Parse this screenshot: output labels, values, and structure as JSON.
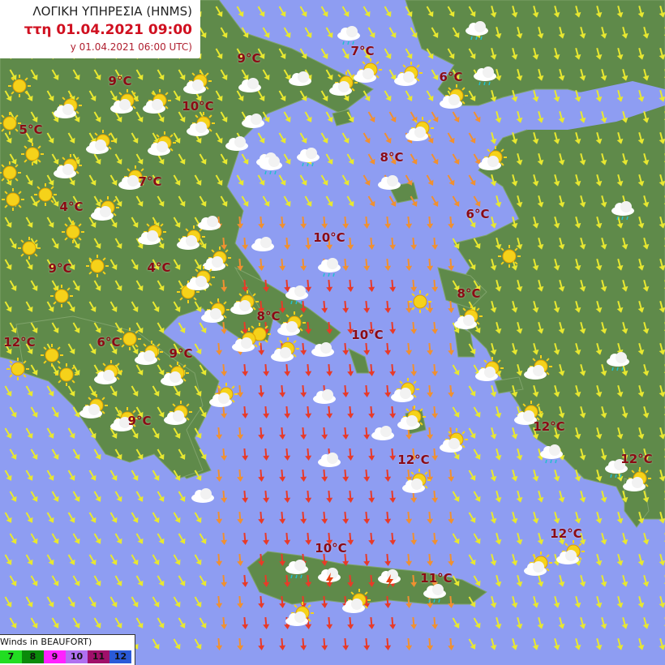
{
  "header": {
    "agency": "ΛΟΓΙΚΗ ΥΠΗΡΕΣΙΑ (HNMS)",
    "forecast_time": "ττη 01.04.2021 09:00",
    "run_time": "y 01.04.2021 06:00 UTC)"
  },
  "temperatures": [
    "9°C",
    "7°C",
    "6°C",
    "9°C",
    "10°C",
    "5°C",
    "8°C",
    "7°C",
    "4°C",
    "6°C",
    "10°C",
    "9°C",
    "4°C",
    "8°C",
    "8°C",
    "10°C",
    "12°C",
    "6°C",
    "9°C",
    "9°C",
    "12°C",
    "12°C",
    "12°C",
    "12°C",
    "10°C",
    "11°C"
  ],
  "legend": {
    "title": "Winds in BEAUFORT)",
    "levels": [
      {
        "label": "7",
        "color": "#22dd22"
      },
      {
        "label": "8",
        "color": "#0a8a0a"
      },
      {
        "label": "9",
        "color": "#ff22ff"
      },
      {
        "label": "10",
        "color": "#b070f0"
      },
      {
        "label": "11",
        "color": "#a0106a"
      },
      {
        "label": "12",
        "color": "#2a5ad8"
      }
    ]
  },
  "colors": {
    "sea": "#8e9df2",
    "land": "#5f8a4a",
    "wind_low": "#e8e830",
    "wind_mid": "#f09030",
    "wind_high": "#e83a28",
    "temperature": "#8b0a14"
  },
  "icons": [
    "sun-icon",
    "cloud-icon",
    "rain-cloud-icon",
    "sun-cloud-icon",
    "thunderstorm-icon",
    "wind-arrow-icon"
  ]
}
